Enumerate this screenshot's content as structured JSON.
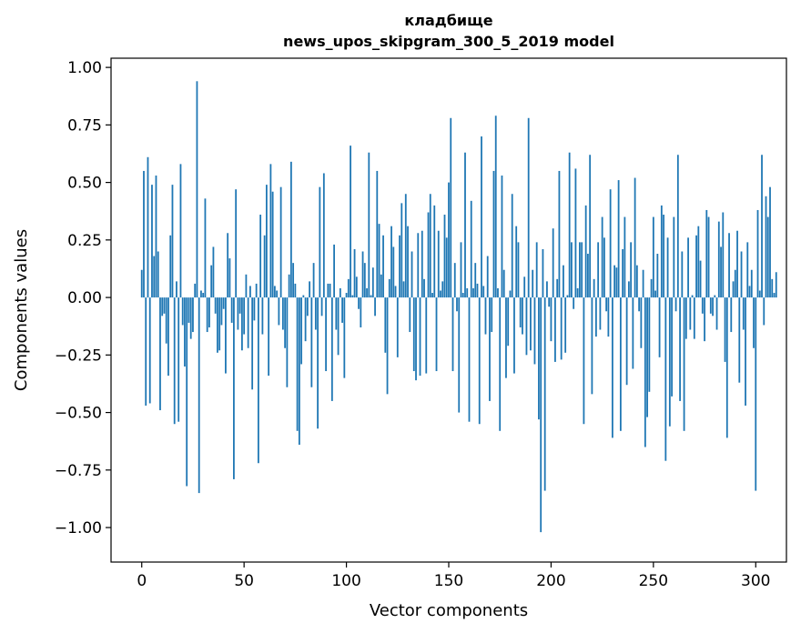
{
  "chart_data": {
    "type": "bar",
    "title": "кладбище",
    "subtitle": "news_upos_skipgram_300_5_2019 model",
    "xlabel": "Vector components",
    "ylabel": "Components values",
    "xlim": [
      -15,
      315
    ],
    "ylim": [
      -1.15,
      1.04
    ],
    "xticks": [
      0,
      50,
      100,
      150,
      200,
      250,
      300
    ],
    "xtick_labels": [
      "0",
      "50",
      "100",
      "150",
      "200",
      "250",
      "300"
    ],
    "yticks": [
      1.0,
      0.75,
      0.5,
      0.25,
      0.0,
      -0.25,
      -0.5,
      -0.75,
      -1.0
    ],
    "ytick_labels": [
      "1.00",
      "0.75",
      "0.50",
      "0.25",
      "0.00",
      "−0.25",
      "−0.50",
      "−0.75",
      "−1.00"
    ],
    "grid": false,
    "bar_color": "#1f77b4",
    "values": [
      0.12,
      0.55,
      -0.47,
      0.61,
      -0.46,
      0.49,
      0.18,
      0.53,
      0.2,
      -0.49,
      -0.08,
      -0.07,
      -0.2,
      -0.34,
      0.27,
      0.49,
      -0.55,
      0.07,
      -0.54,
      0.58,
      -0.12,
      -0.3,
      -0.82,
      -0.11,
      -0.18,
      -0.15,
      0.06,
      0.94,
      -0.85,
      0.03,
      0.02,
      0.43,
      -0.15,
      -0.13,
      0.14,
      0.22,
      -0.07,
      -0.24,
      -0.23,
      -0.12,
      -0.05,
      -0.33,
      0.28,
      0.17,
      -0.11,
      -0.79,
      0.47,
      -0.14,
      -0.07,
      -0.23,
      -0.16,
      0.1,
      -0.22,
      0.05,
      -0.4,
      -0.1,
      0.06,
      -0.72,
      0.36,
      -0.16,
      0.27,
      0.49,
      -0.34,
      0.58,
      0.46,
      0.05,
      0.03,
      -0.12,
      0.48,
      -0.14,
      -0.22,
      -0.39,
      0.1,
      0.59,
      0.15,
      0.06,
      -0.58,
      -0.64,
      -0.29,
      0.01,
      -0.19,
      -0.08,
      0.07,
      -0.39,
      0.15,
      -0.14,
      -0.57,
      0.48,
      -0.08,
      0.54,
      -0.32,
      0.06,
      0.06,
      -0.45,
      0.23,
      -0.14,
      -0.25,
      0.04,
      -0.11,
      -0.35,
      0.02,
      0.08,
      0.66,
      0.01,
      0.21,
      0.09,
      -0.05,
      -0.13,
      0.2,
      0.15,
      0.04,
      0.63,
      0.01,
      0.13,
      -0.08,
      0.55,
      0.32,
      0.1,
      0.27,
      -0.24,
      -0.42,
      0.08,
      0.31,
      0.22,
      0.05,
      -0.26,
      0.27,
      0.41,
      0.07,
      0.45,
      0.31,
      -0.15,
      0.2,
      -0.32,
      -0.36,
      0.28,
      -0.34,
      0.29,
      0.08,
      -0.33,
      0.37,
      0.45,
      0.02,
      0.4,
      -0.32,
      0.29,
      0.03,
      0.07,
      0.36,
      0.26,
      0.5,
      0.78,
      -0.32,
      0.15,
      -0.06,
      -0.5,
      0.24,
      0.02,
      0.63,
      0.04,
      -0.54,
      0.42,
      0.04,
      0.15,
      0.06,
      -0.55,
      0.7,
      0.05,
      -0.16,
      0.18,
      -0.45,
      -0.15,
      0.55,
      0.79,
      0.04,
      -0.58,
      0.53,
      0.12,
      -0.35,
      -0.21,
      0.03,
      0.45,
      -0.33,
      0.31,
      0.24,
      -0.13,
      -0.16,
      0.09,
      -0.25,
      0.78,
      -0.23,
      0.12,
      -0.29,
      0.24,
      -0.53,
      -1.02,
      0.21,
      -0.84,
      0.07,
      -0.04,
      -0.19,
      0.3,
      -0.28,
      0.08,
      0.55,
      -0.27,
      0.14,
      -0.24,
      0.01,
      0.63,
      0.24,
      -0.05,
      0.56,
      0.04,
      0.24,
      0.24,
      -0.55,
      0.4,
      0.19,
      0.62,
      -0.42,
      0.08,
      -0.17,
      0.24,
      -0.14,
      0.35,
      0.26,
      -0.06,
      -0.17,
      0.47,
      -0.61,
      0.14,
      0.13,
      0.51,
      -0.58,
      0.21,
      0.35,
      -0.38,
      0.07,
      0.24,
      -0.31,
      0.52,
      0.14,
      -0.06,
      -0.22,
      0.12,
      -0.65,
      -0.52,
      -0.41,
      0.08,
      0.35,
      0.03,
      0.19,
      -0.26,
      0.4,
      0.36,
      -0.71,
      0.26,
      -0.56,
      -0.43,
      0.35,
      -0.06,
      0.62,
      -0.45,
      0.2,
      -0.58,
      -0.18,
      0.26,
      -0.14,
      0.01,
      -0.18,
      0.27,
      0.31,
      0.16,
      -0.07,
      -0.19,
      0.38,
      0.35,
      -0.07,
      -0.08,
      0.01,
      -0.14,
      0.33,
      0.22,
      0.37,
      -0.28,
      -0.61,
      0.28,
      -0.15,
      0.07,
      0.12,
      0.29,
      -0.37,
      0.2,
      -0.14,
      -0.47,
      0.24,
      0.05,
      0.12,
      -0.22,
      -0.84,
      0.38,
      0.03,
      0.62,
      -0.12,
      0.44,
      0.35,
      0.48,
      0.08,
      0.02,
      0.11
    ]
  }
}
